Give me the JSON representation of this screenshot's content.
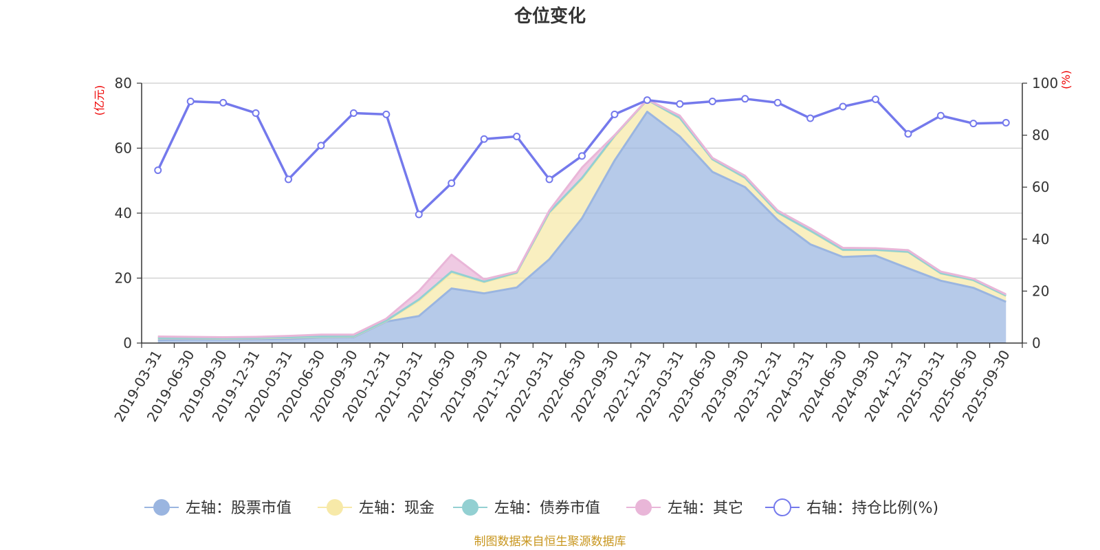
{
  "chart_data": {
    "type": "area",
    "title": "仓位变化",
    "source": "制图数据来自恒生聚源数据库",
    "left_axis": {
      "unit": "(亿元)",
      "ylim": [
        0,
        80
      ],
      "ticks": [
        0,
        20,
        40,
        60,
        80
      ]
    },
    "right_axis": {
      "unit": "(%)",
      "ylim": [
        0,
        100
      ],
      "ticks": [
        0,
        20,
        40,
        60,
        80,
        100
      ]
    },
    "categories": [
      "2019-03-31",
      "2019-06-30",
      "2019-09-30",
      "2019-12-31",
      "2020-03-31",
      "2020-06-30",
      "2020-09-30",
      "2020-12-31",
      "2021-03-31",
      "2021-06-30",
      "2021-09-30",
      "2021-12-31",
      "2022-03-31",
      "2022-06-30",
      "2022-09-30",
      "2022-12-31",
      "2023-03-31",
      "2023-06-30",
      "2023-09-30",
      "2023-12-31",
      "2024-03-31",
      "2024-06-30",
      "2024-09-30",
      "2024-12-31",
      "2025-03-31",
      "2025-06-30",
      "2025-09-30"
    ],
    "series": [
      {
        "name": "左轴：股票市值",
        "axis": "left",
        "stack": true,
        "color": "#9ab5e0",
        "values": [
          0.9,
          1.1,
          1.1,
          1.2,
          1.3,
          1.7,
          1.8,
          6.6,
          8.3,
          16.8,
          15.3,
          17.1,
          25.8,
          38.4,
          56.2,
          71.2,
          63.6,
          52.7,
          48.0,
          37.9,
          30.4,
          26.5,
          26.9,
          23.0,
          19.2,
          17.0,
          12.7
        ]
      },
      {
        "name": "左轴：现金",
        "axis": "left",
        "stack": true,
        "color": "#f7e9a8",
        "values": [
          0.6,
          0.4,
          0.3,
          0.3,
          0.4,
          0.2,
          0.2,
          0.2,
          4.7,
          4.8,
          3.4,
          4.4,
          14.2,
          12.1,
          7.3,
          3.6,
          5.6,
          3.8,
          2.8,
          2.2,
          4.1,
          2.1,
          1.7,
          5.0,
          2.2,
          2.3,
          1.8
        ]
      },
      {
        "name": "左轴：债券市值",
        "axis": "left",
        "stack": true,
        "color": "#93d0d2",
        "values": [
          0.1,
          0.1,
          0.1,
          0.1,
          0.1,
          0.1,
          0.1,
          0.1,
          0.4,
          0.4,
          0.2,
          0.2,
          0.3,
          0.3,
          0.3,
          0.1,
          0.1,
          0.1,
          0.1,
          0.1,
          0.1,
          0.1,
          0.1,
          0.1,
          0.1,
          0.1,
          0.1
        ]
      },
      {
        "name": "左轴：其它",
        "axis": "left",
        "stack": true,
        "color": "#e9b6d8",
        "values": [
          0.4,
          0.3,
          0.3,
          0.3,
          0.4,
          0.6,
          0.5,
          0.6,
          2.6,
          5.2,
          0.7,
          0.3,
          0.5,
          3.2,
          0.2,
          0.1,
          0.7,
          0.4,
          0.6,
          0.6,
          0.7,
          0.6,
          0.5,
          0.5,
          0.5,
          0.4,
          0.4
        ]
      },
      {
        "name": "右轴：持仓比例(%)",
        "axis": "right",
        "stack": false,
        "color": "#7479ec",
        "values": [
          66.5,
          93.0,
          92.5,
          88.5,
          63.0,
          76.0,
          88.5,
          88.0,
          49.5,
          61.5,
          78.5,
          79.5,
          63.0,
          72.0,
          88.0,
          93.5,
          92.0,
          93.0,
          94.0,
          92.5,
          86.5,
          91.0,
          93.8,
          80.5,
          87.5,
          84.5,
          84.8
        ]
      }
    ]
  }
}
